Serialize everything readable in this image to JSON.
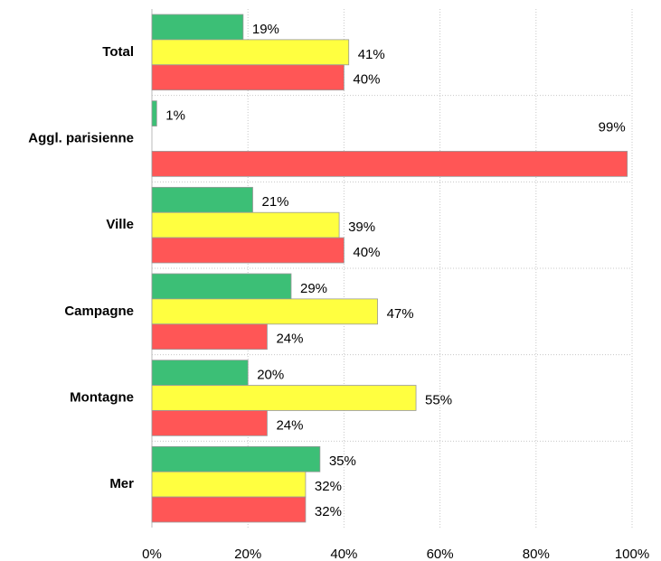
{
  "chart_data": {
    "type": "barh",
    "categories": [
      "Total",
      "Aggl. parisienne",
      "Ville",
      "Campagne",
      "Montagne",
      "Mer"
    ],
    "series": [
      {
        "color": "#3cbf76",
        "values": [
          19,
          1,
          21,
          29,
          20,
          35
        ],
        "value_labels": [
          "19%",
          "1%",
          "21%",
          "29%",
          "20%",
          "35%"
        ]
      },
      {
        "color": "#ffff40",
        "values": [
          41,
          null,
          39,
          47,
          55,
          32
        ],
        "value_labels": [
          "41%",
          null,
          "39%",
          "47%",
          "55%",
          "32%"
        ]
      },
      {
        "color": "#ff5656",
        "values": [
          40,
          99,
          40,
          24,
          24,
          32
        ],
        "value_labels": [
          "40%",
          "99%",
          "40%",
          "24%",
          "24%",
          "32%"
        ]
      }
    ],
    "xlim": [
      0,
      100
    ],
    "xticks": [
      {
        "value": 0,
        "label": "0%"
      },
      {
        "value": 20,
        "label": "20%"
      },
      {
        "value": 40,
        "label": "40%"
      },
      {
        "value": 60,
        "label": "60%"
      },
      {
        "value": 80,
        "label": "80%"
      },
      {
        "value": 100,
        "label": "100%"
      }
    ],
    "grid": true
  }
}
